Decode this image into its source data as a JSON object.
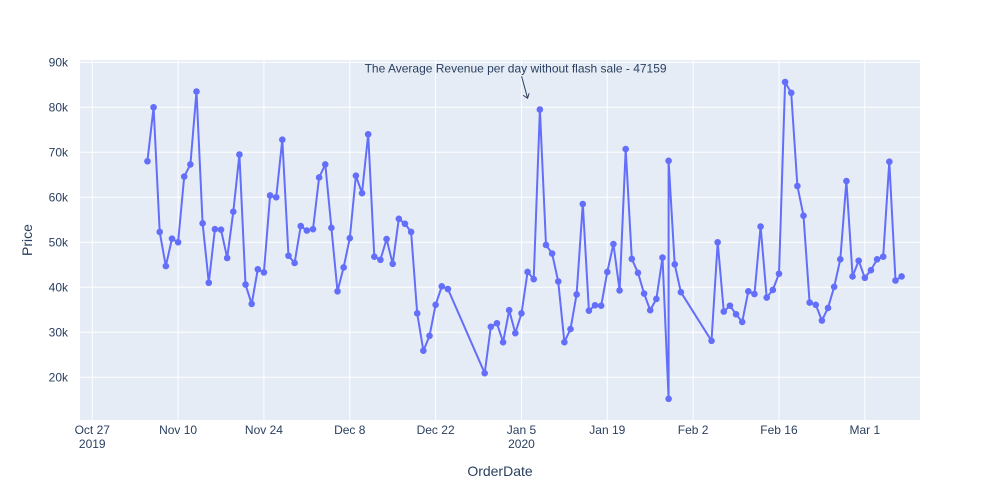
{
  "chart_data": {
    "type": "line",
    "mode": "lines+markers",
    "xlabel": "OrderDate",
    "ylabel": "Price",
    "annotation": {
      "text": "The Average Revenue per day without flash sale - 47159",
      "x": "2020-01-06",
      "y": 82000
    },
    "x_ticks": [
      {
        "date": "2019-10-27",
        "label": "Oct 27",
        "sub": "2019"
      },
      {
        "date": "2019-11-10",
        "label": "Nov 10",
        "sub": ""
      },
      {
        "date": "2019-11-24",
        "label": "Nov 24",
        "sub": ""
      },
      {
        "date": "2019-12-08",
        "label": "Dec 8",
        "sub": ""
      },
      {
        "date": "2019-12-22",
        "label": "Dec 22",
        "sub": ""
      },
      {
        "date": "2020-01-05",
        "label": "Jan 5",
        "sub": "2020"
      },
      {
        "date": "2020-01-19",
        "label": "Jan 19",
        "sub": ""
      },
      {
        "date": "2020-02-02",
        "label": "Feb 2",
        "sub": ""
      },
      {
        "date": "2020-02-16",
        "label": "Feb 16",
        "sub": ""
      },
      {
        "date": "2020-03-01",
        "label": "Mar 1",
        "sub": ""
      }
    ],
    "y_ticks": [
      {
        "value": 20000,
        "label": "20k"
      },
      {
        "value": 30000,
        "label": "30k"
      },
      {
        "value": 40000,
        "label": "40k"
      },
      {
        "value": 50000,
        "label": "50k"
      },
      {
        "value": 60000,
        "label": "60k"
      },
      {
        "value": 70000,
        "label": "70k"
      },
      {
        "value": 80000,
        "label": "80k"
      },
      {
        "value": 90000,
        "label": "90k"
      }
    ],
    "xlim": [
      "2019-10-25",
      "2020-03-10"
    ],
    "ylim": [
      10500,
      90500
    ],
    "grid": true,
    "colors": {
      "line": "#636efa",
      "plot_bg": "#e5ecf6",
      "grid": "#ffffff",
      "text": "#2a3f5f"
    },
    "series": [
      {
        "points": [
          [
            "2019-11-05",
            68000
          ],
          [
            "2019-11-06",
            80000
          ],
          [
            "2019-11-07",
            52300
          ],
          [
            "2019-11-08",
            44700
          ],
          [
            "2019-11-09",
            50800
          ],
          [
            "2019-11-10",
            50000
          ],
          [
            "2019-11-11",
            64600
          ],
          [
            "2019-11-12",
            67300
          ],
          [
            "2019-11-13",
            83500
          ],
          [
            "2019-11-14",
            54200
          ],
          [
            "2019-11-15",
            41000
          ],
          [
            "2019-11-16",
            52900
          ],
          [
            "2019-11-17",
            52800
          ],
          [
            "2019-11-18",
            46500
          ],
          [
            "2019-11-19",
            56800
          ],
          [
            "2019-11-20",
            69500
          ],
          [
            "2019-11-21",
            40600
          ],
          [
            "2019-11-22",
            36300
          ],
          [
            "2019-11-23",
            44000
          ],
          [
            "2019-11-24",
            43300
          ],
          [
            "2019-11-25",
            60400
          ],
          [
            "2019-11-26",
            60000
          ],
          [
            "2019-11-27",
            72800
          ],
          [
            "2019-11-28",
            47000
          ],
          [
            "2019-11-29",
            45400
          ],
          [
            "2019-11-30",
            53600
          ],
          [
            "2019-12-01",
            52600
          ],
          [
            "2019-12-02",
            52900
          ],
          [
            "2019-12-03",
            64400
          ],
          [
            "2019-12-04",
            67300
          ],
          [
            "2019-12-05",
            53200
          ],
          [
            "2019-12-06",
            39100
          ],
          [
            "2019-12-07",
            44400
          ],
          [
            "2019-12-08",
            50900
          ],
          [
            "2019-12-09",
            64800
          ],
          [
            "2019-12-10",
            60900
          ],
          [
            "2019-12-11",
            74000
          ],
          [
            "2019-12-12",
            46800
          ],
          [
            "2019-12-13",
            46100
          ],
          [
            "2019-12-14",
            50700
          ],
          [
            "2019-12-15",
            45200
          ],
          [
            "2019-12-16",
            55200
          ],
          [
            "2019-12-17",
            54100
          ],
          [
            "2019-12-18",
            52300
          ],
          [
            "2019-12-19",
            34200
          ],
          [
            "2019-12-20",
            25900
          ],
          [
            "2019-12-21",
            29200
          ],
          [
            "2019-12-22",
            36100
          ],
          [
            "2019-12-23",
            40200
          ],
          [
            "2019-12-24",
            39600
          ],
          [
            "2020-01-29",
            15200
          ],
          [
            "2019-12-30",
            20900
          ],
          [
            "2019-12-31",
            31200
          ],
          [
            "2020-01-01",
            32000
          ],
          [
            "2020-01-02",
            27800
          ],
          [
            "2020-01-03",
            34900
          ],
          [
            "2020-01-04",
            29800
          ],
          [
            "2020-01-05",
            34200
          ],
          [
            "2020-01-06",
            43400
          ],
          [
            "2020-01-07",
            41800
          ],
          [
            "2020-01-08",
            79500
          ],
          [
            "2020-01-09",
            49400
          ],
          [
            "2020-01-10",
            47500
          ],
          [
            "2020-01-11",
            41300
          ],
          [
            "2020-01-12",
            27800
          ],
          [
            "2020-01-13",
            30700
          ],
          [
            "2020-01-14",
            38400
          ],
          [
            "2020-01-15",
            58500
          ],
          [
            "2020-01-16",
            34800
          ],
          [
            "2020-01-17",
            36000
          ],
          [
            "2020-01-18",
            35900
          ],
          [
            "2020-01-19",
            43400
          ],
          [
            "2020-01-20",
            49600
          ],
          [
            "2020-01-21",
            39300
          ],
          [
            "2020-01-22",
            70700
          ],
          [
            "2020-01-23",
            46300
          ],
          [
            "2020-01-24",
            43200
          ],
          [
            "2020-01-25",
            38600
          ],
          [
            "2020-01-26",
            34900
          ],
          [
            "2020-01-27",
            37400
          ],
          [
            "2020-01-28",
            46600
          ],
          [
            "2020-01-29",
            68100
          ],
          [
            "2020-01-30",
            45100
          ],
          [
            "2020-01-31",
            38900
          ],
          [
            "2020-02-05",
            28100
          ],
          [
            "2020-02-06",
            50000
          ],
          [
            "2020-02-07",
            34600
          ],
          [
            "2020-02-08",
            35900
          ],
          [
            "2020-02-09",
            34000
          ],
          [
            "2020-02-10",
            32300
          ],
          [
            "2020-02-11",
            39100
          ],
          [
            "2020-02-12",
            38500
          ],
          [
            "2020-02-13",
            53500
          ],
          [
            "2020-02-14",
            37700
          ],
          [
            "2020-02-15",
            39400
          ],
          [
            "2020-02-16",
            43000
          ],
          [
            "2020-02-17",
            85600
          ],
          [
            "2020-02-18",
            83200
          ],
          [
            "2020-02-19",
            62500
          ],
          [
            "2020-02-20",
            55900
          ],
          [
            "2020-02-21",
            36600
          ],
          [
            "2020-02-22",
            36100
          ],
          [
            "2020-02-23",
            32600
          ],
          [
            "2020-02-24",
            35400
          ],
          [
            "2020-02-25",
            40100
          ],
          [
            "2020-02-26",
            46200
          ],
          [
            "2020-02-27",
            63600
          ],
          [
            "2020-02-28",
            42400
          ],
          [
            "2020-02-29",
            45900
          ],
          [
            "2020-03-01",
            42100
          ],
          [
            "2020-03-02",
            43800
          ],
          [
            "2020-03-03",
            46200
          ],
          [
            "2020-03-04",
            46800
          ],
          [
            "2020-03-05",
            67900
          ],
          [
            "2020-03-06",
            41500
          ],
          [
            "2020-03-07",
            42400
          ]
        ]
      }
    ]
  }
}
